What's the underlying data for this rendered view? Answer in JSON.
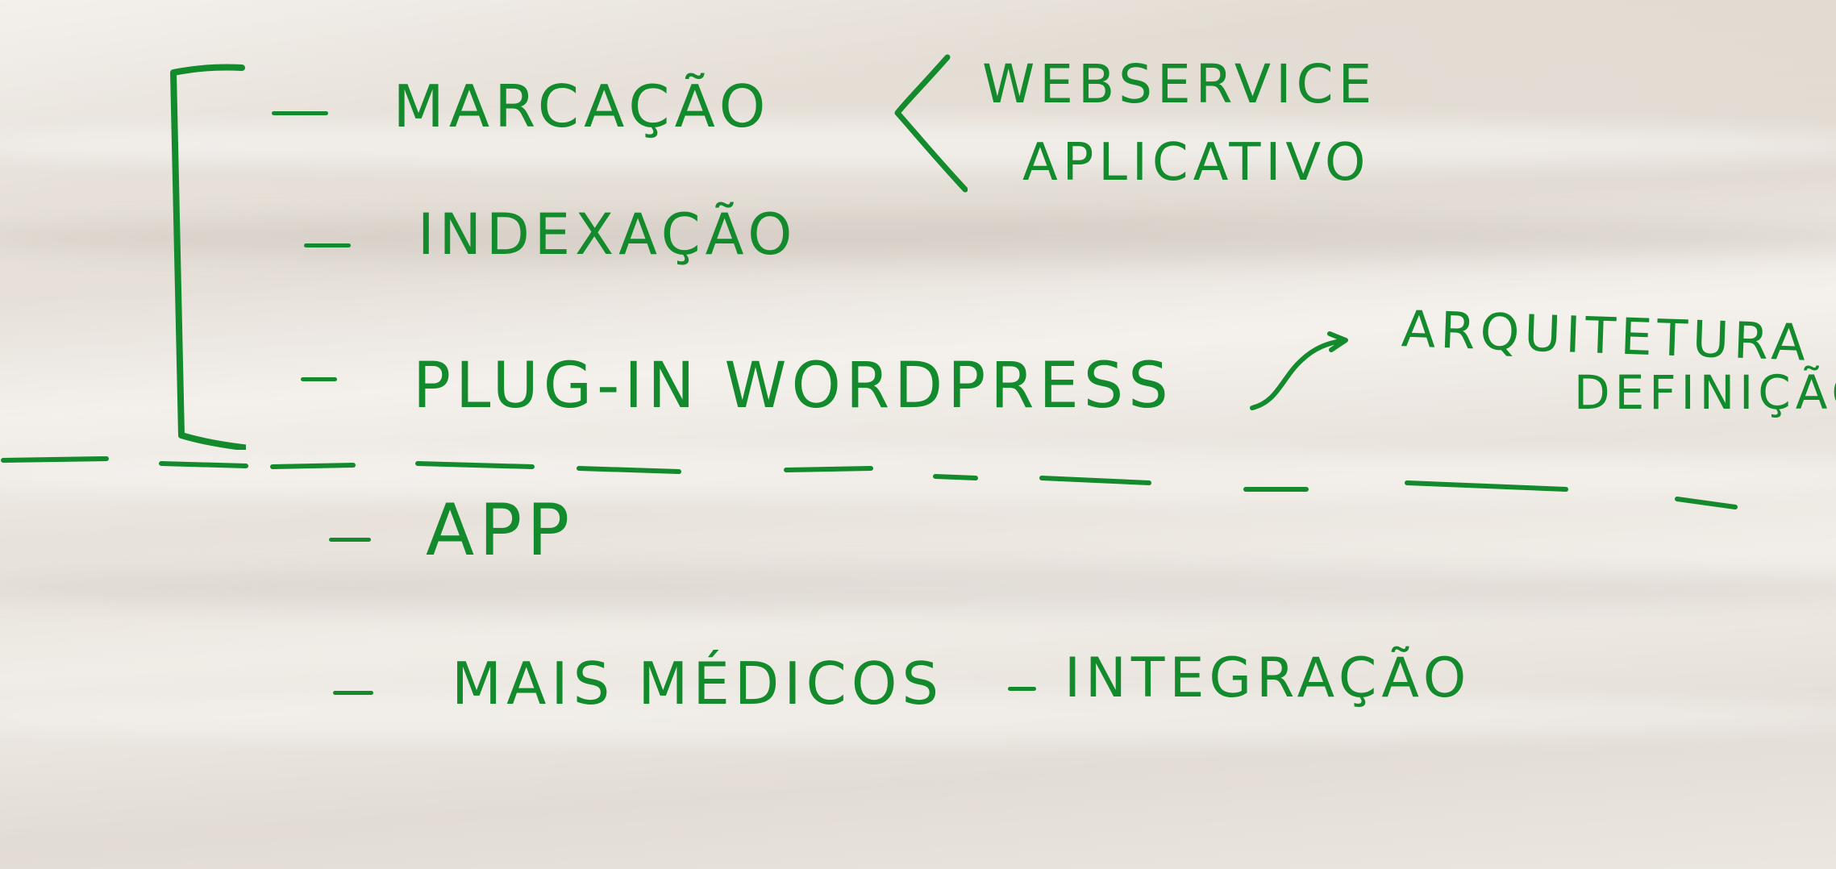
{
  "whiteboard": {
    "items": [
      {
        "text": "MARCAÇÃO"
      },
      {
        "text": "INDEXAÇÃO"
      },
      {
        "text": "PLUG-IN WORDPRESS"
      },
      {
        "text": "APP"
      },
      {
        "text": "MAIS MÉDICOS"
      }
    ],
    "brace_options": [
      "WEBSERVICE",
      "APLICATIVO"
    ],
    "arrow_notes": [
      "ARQUITETURA",
      "DEFINIÇÃO"
    ],
    "integration_note": "INTEGRAÇÃO",
    "bullet": "-",
    "ink_color": "#138a2c",
    "paper_color": "#ece7e0"
  }
}
